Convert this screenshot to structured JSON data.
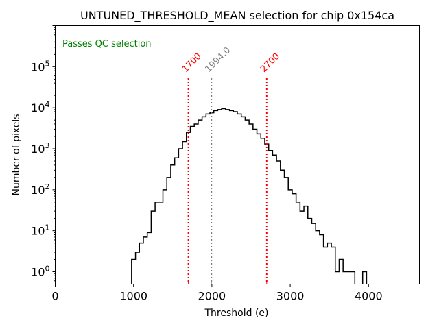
{
  "chart_data": {
    "type": "histogram",
    "title": "UNTUNED_THRESHOLD_MEAN selection for chip 0x154ca",
    "xlabel": "Threshold (e)",
    "ylabel": "Number of pixels",
    "xlim": [
      0,
      4650
    ],
    "ylim_log": [
      0.5,
      1000000
    ],
    "yscale": "log",
    "grid": false,
    "x_ticks": [
      {
        "value": 0,
        "label": "0"
      },
      {
        "value": 1000,
        "label": "1000"
      },
      {
        "value": 2000,
        "label": "2000"
      },
      {
        "value": 3000,
        "label": "3000"
      },
      {
        "value": 4000,
        "label": "4000"
      }
    ],
    "y_ticks": [
      {
        "value": 1,
        "base": "10",
        "exp": "0"
      },
      {
        "value": 10,
        "base": "10",
        "exp": "1"
      },
      {
        "value": 100,
        "base": "10",
        "exp": "2"
      },
      {
        "value": 1000,
        "base": "10",
        "exp": "3"
      },
      {
        "value": 10000,
        "base": "10",
        "exp": "4"
      },
      {
        "value": 100000,
        "base": "10",
        "exp": "5"
      }
    ],
    "bin_width": 50,
    "bins_start": 975,
    "counts": [
      2,
      3,
      5,
      7,
      9,
      30,
      50,
      50,
      100,
      200,
      400,
      600,
      1000,
      1500,
      2500,
      3500,
      4000,
      5000,
      6000,
      7000,
      7500,
      8500,
      9000,
      9500,
      9000,
      8500,
      8000,
      7000,
      6000,
      5000,
      4000,
      3000,
      2300,
      1800,
      1300,
      900,
      700,
      500,
      300,
      200,
      100,
      80,
      50,
      30,
      40,
      20,
      15,
      10,
      8,
      4,
      5,
      4,
      1,
      2,
      1,
      1,
      1,
      0,
      0,
      1,
      0
    ],
    "annotations": [
      {
        "text": "Passes QC selection",
        "color": "#008000",
        "position": "top-left"
      }
    ],
    "vlines": [
      {
        "x": 1700,
        "label": "1700",
        "color": "#ff0000",
        "style": "dotted"
      },
      {
        "x": 1994.0,
        "label": "1994.0",
        "color": "#808080",
        "style": "dotted"
      },
      {
        "x": 2700,
        "label": "2700",
        "color": "#ff0000",
        "style": "dotted"
      }
    ]
  }
}
